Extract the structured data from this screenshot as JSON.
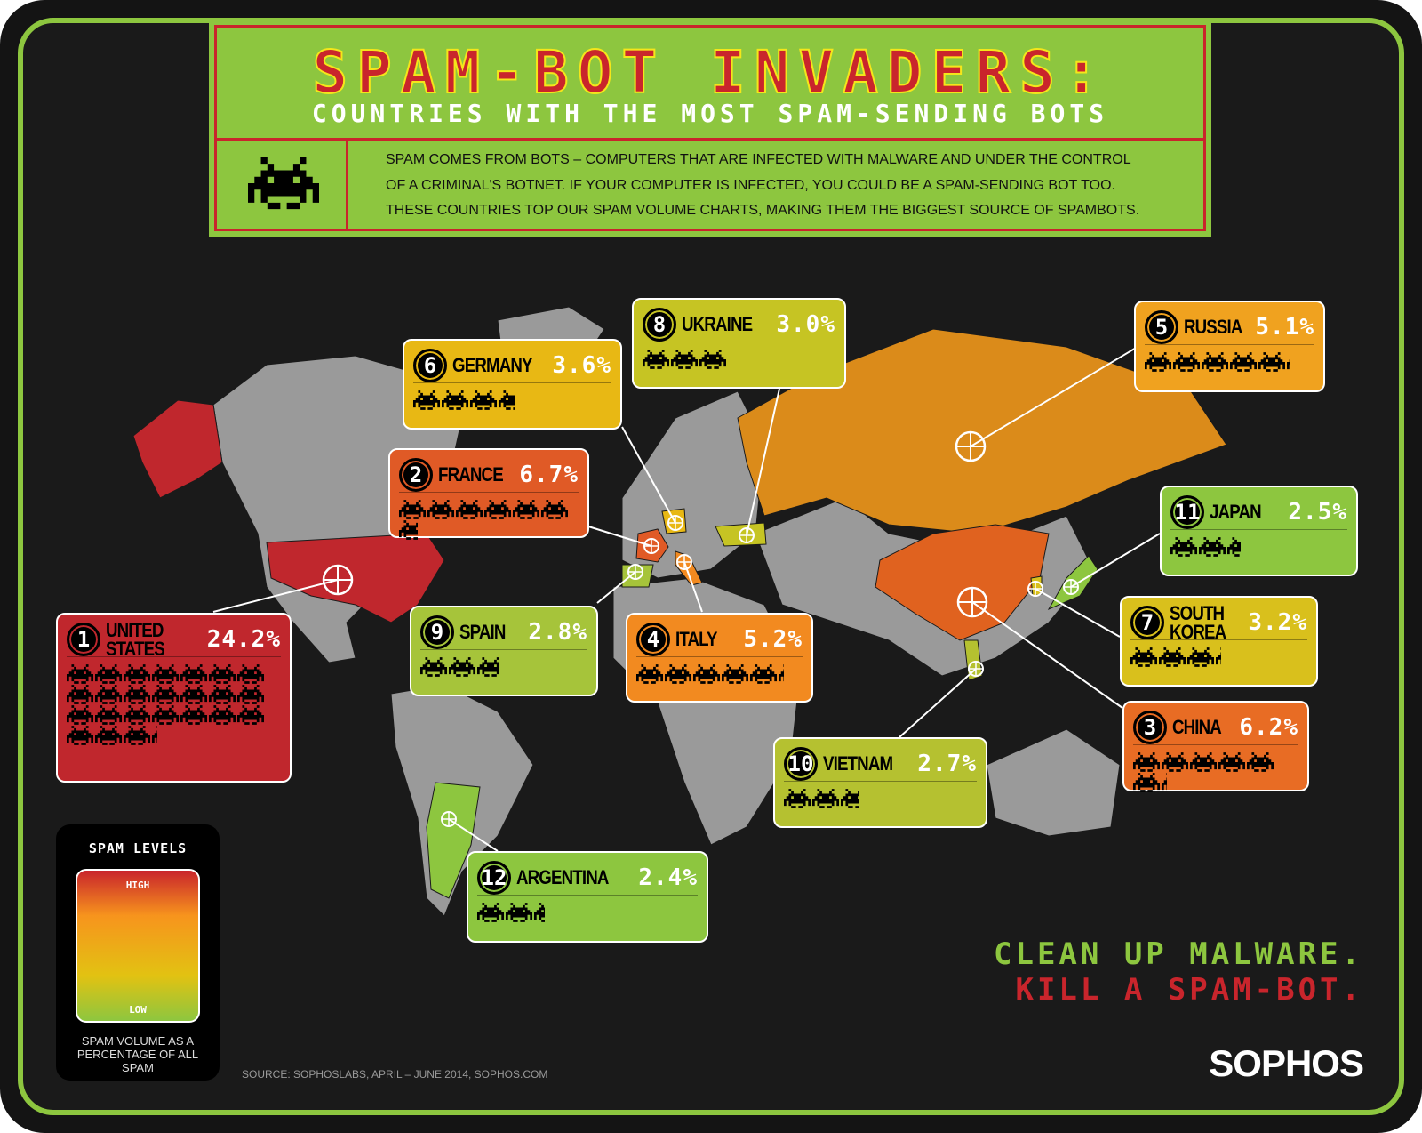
{
  "header": {
    "title": "SPAM-BOT INVADERS:",
    "subtitle": "COUNTRIES WITH THE MOST SPAM-SENDING BOTS",
    "description": [
      "SPAM COMES FROM BOTS – COMPUTERS THAT ARE INFECTED WITH MALWARE AND UNDER THE CONTROL",
      "OF A CRIMINAL'S BOTNET. IF YOUR COMPUTER IS INFECTED, YOU COULD BE A SPAM-SENDING BOT TOO.",
      "THESE COUNTRIES TOP OUR SPAM VOLUME CHARTS, MAKING THEM THE BIGGEST SOURCE OF SPAMBOTS."
    ]
  },
  "countries": [
    {
      "rank": "1",
      "name": "UNITED STATES",
      "percent": "24.2%",
      "value": 24.2,
      "color": "#c0272d"
    },
    {
      "rank": "2",
      "name": "FRANCE",
      "percent": "6.7%",
      "value": 6.7,
      "color": "#e05a26"
    },
    {
      "rank": "3",
      "name": "CHINA",
      "percent": "6.2%",
      "value": 6.2,
      "color": "#e86c24"
    },
    {
      "rank": "4",
      "name": "ITALY",
      "percent": "5.2%",
      "value": 5.2,
      "color": "#f28a20"
    },
    {
      "rank": "5",
      "name": "RUSSIA",
      "percent": "5.1%",
      "value": 5.1,
      "color": "#f0a21f"
    },
    {
      "rank": "6",
      "name": "GERMANY",
      "percent": "3.6%",
      "value": 3.6,
      "color": "#e8b814"
    },
    {
      "rank": "7",
      "name": "SOUTH KOREA",
      "percent": "3.2%",
      "value": 3.2,
      "color": "#d9c01c"
    },
    {
      "rank": "8",
      "name": "UKRAINE",
      "percent": "3.0%",
      "value": 3.0,
      "color": "#c6c423"
    },
    {
      "rank": "9",
      "name": "SPAIN",
      "percent": "2.8%",
      "value": 2.8,
      "color": "#a6c43a"
    },
    {
      "rank": "10",
      "name": "VIETNAM",
      "percent": "2.7%",
      "value": 2.7,
      "color": "#b5c130"
    },
    {
      "rank": "11",
      "name": "JAPAN",
      "percent": "2.5%",
      "value": 2.5,
      "color": "#8dc63f"
    },
    {
      "rank": "12",
      "name": "ARGENTINA",
      "percent": "2.4%",
      "value": 2.4,
      "color": "#8dc63f"
    }
  ],
  "legend": {
    "title": "SPAM LEVELS",
    "high": "HIGH",
    "low": "LOW",
    "description": "SPAM VOLUME AS A PERCENTAGE OF ALL SPAM"
  },
  "source": "SOURCE: SOPHOSLABS, APRIL – JUNE 2014, SOPHOS.COM",
  "tagline": {
    "line1": "CLEAN UP MALWARE.",
    "line2": "KILL A SPAM-BOT."
  },
  "logo": "SOPHOS",
  "colors": {
    "accent": "#8dc63f",
    "red": "#c9252c",
    "land": "#9a9a9a"
  }
}
